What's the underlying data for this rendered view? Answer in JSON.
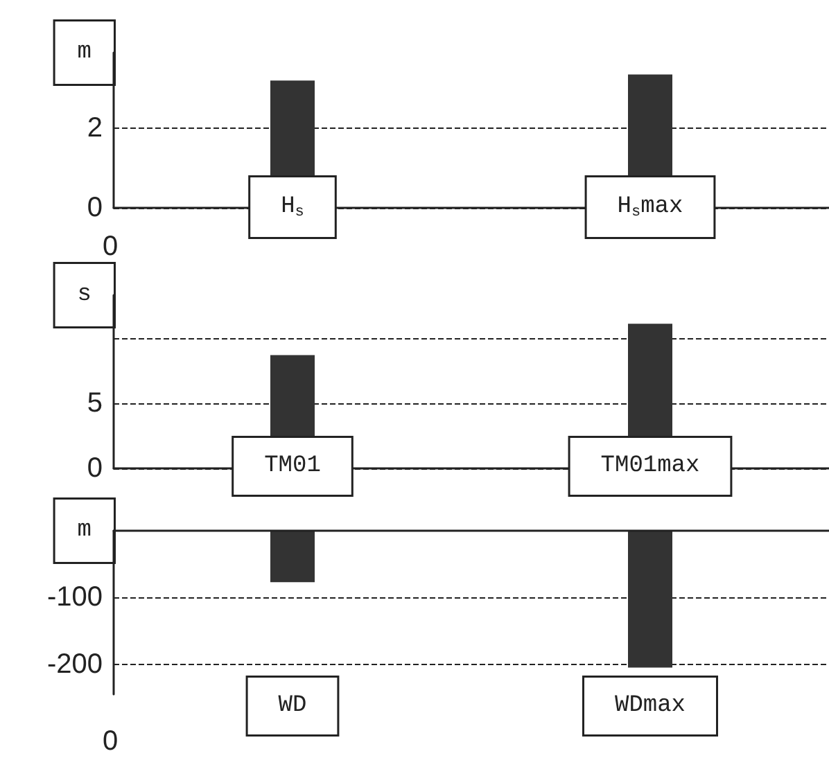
{
  "chart_data": [
    {
      "type": "bar",
      "ylabel": "m",
      "categories": [
        "H$_{s}$",
        "H$_{s}$max"
      ],
      "color": "#333333",
      "values": [
        3.2,
        3.35
      ],
      "ylim": [
        0,
        3.9
      ],
      "yticks": [
        0,
        2
      ],
      "grid": "y",
      "annotations": [
        "0"
      ]
    },
    {
      "type": "bar",
      "ylabel": "s",
      "categories": [
        "TM01",
        "TM01max"
      ],
      "color": "#333333",
      "values": [
        8.7,
        11.1
      ],
      "ylim": [
        0,
        13.3
      ],
      "yticks": [
        0,
        5,
        {
          "value": 10,
          "label": null
        }
      ],
      "grid": "y"
    },
    {
      "type": "bar",
      "ylabel": "m",
      "categories": [
        "WD",
        "WDmax"
      ],
      "color": "#333333",
      "values": [
        -77,
        -205
      ],
      "ylim": [
        -245,
        0
      ],
      "yticks": [
        -200,
        -100
      ],
      "grid": "y",
      "annotations": [
        "0"
      ]
    }
  ]
}
